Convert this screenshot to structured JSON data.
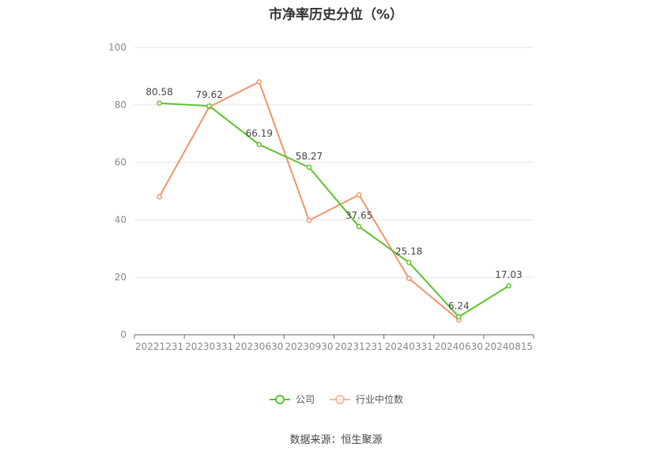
{
  "chart_data": {
    "type": "line",
    "title": "市净率历史分位（%）",
    "categories": [
      "20221231",
      "20230331",
      "20230630",
      "20230930",
      "20231231",
      "20240331",
      "20240630",
      "20240815"
    ],
    "ylim": [
      0,
      100
    ],
    "yticks": [
      0,
      20,
      40,
      60,
      80,
      100
    ],
    "grid": true,
    "legend_position": "bottom",
    "series": [
      {
        "name": "公司",
        "color": "#5cc42a",
        "values": [
          80.58,
          79.62,
          66.19,
          58.27,
          37.65,
          25.18,
          6.24,
          17.03
        ],
        "labels": [
          "80.58",
          "79.62",
          "66.19",
          "58.27",
          "37.65",
          "25.18",
          "6.24",
          "17.03"
        ]
      },
      {
        "name": "行业中位数",
        "color": "#f0956a",
        "values": [
          48,
          79.3,
          88,
          39.8,
          48.7,
          19.6,
          5.2,
          null
        ]
      }
    ]
  },
  "source": "数据来源：恒生聚源"
}
